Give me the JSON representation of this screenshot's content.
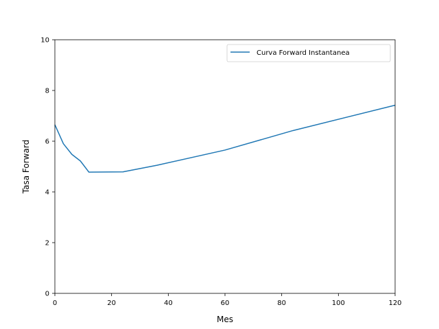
{
  "chart_data": {
    "type": "line",
    "xlabel": "Mes",
    "ylabel": "Tasa Forward",
    "xlim": [
      0,
      120
    ],
    "ylim": [
      0,
      10
    ],
    "x_ticks": [
      0,
      20,
      40,
      60,
      80,
      100,
      120
    ],
    "y_ticks": [
      0,
      2,
      4,
      6,
      8,
      10
    ],
    "grid": false,
    "legend_position": "top-right",
    "series": [
      {
        "name": "Curva Forward Instantanea",
        "color": "#1f77b4",
        "x": [
          0,
          3,
          6,
          9,
          12,
          24,
          36,
          60,
          84,
          120
        ],
        "y": [
          6.65,
          5.9,
          5.48,
          5.22,
          4.78,
          4.79,
          5.05,
          5.65,
          6.42,
          7.42
        ]
      }
    ]
  }
}
